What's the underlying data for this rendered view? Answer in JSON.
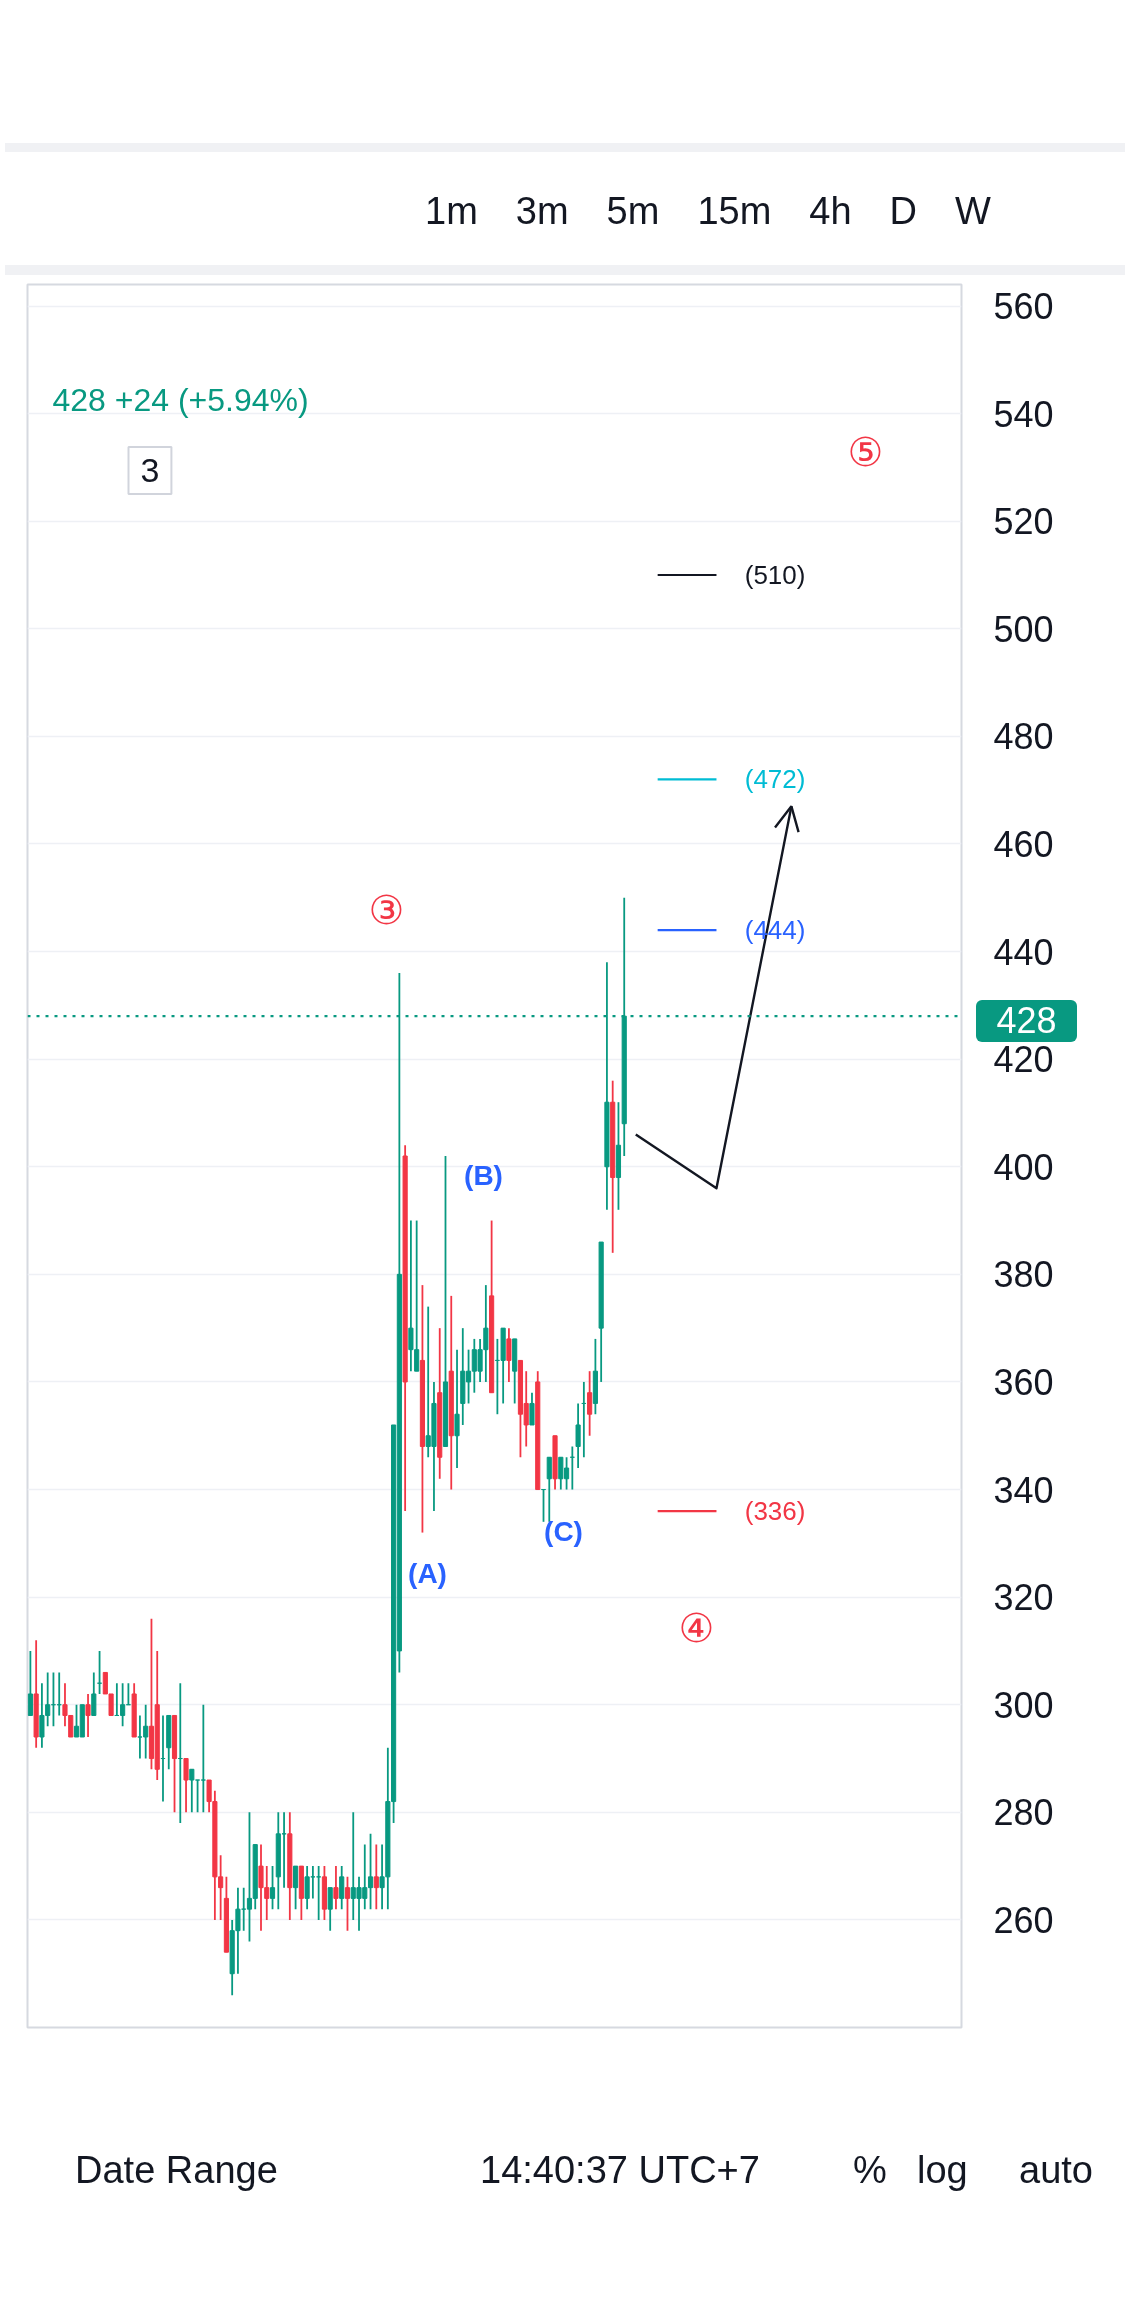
{
  "chart_data": {
    "type": "candlestick",
    "subtitle": "428 +24 (+5.94%)",
    "categories": [
      null,
      null,
      null,
      null,
      null,
      null,
      null,
      null,
      null,
      null,
      null,
      null,
      null,
      null,
      null,
      null,
      null,
      null,
      null,
      null,
      null,
      null,
      null,
      null,
      null,
      null,
      null,
      null,
      null,
      null,
      null,
      null,
      null,
      null,
      null,
      null,
      null,
      null,
      null,
      null,
      null,
      null,
      null,
      null,
      null,
      null,
      null,
      null,
      null,
      null,
      null,
      null,
      null,
      null,
      null,
      null,
      null,
      null,
      null,
      null,
      null,
      null,
      null,
      null,
      null,
      null,
      null,
      null,
      null,
      null,
      null,
      null,
      null,
      null,
      null,
      null,
      null,
      null,
      null,
      null,
      null,
      null,
      null,
      null,
      null,
      null,
      null,
      null,
      null,
      null,
      null,
      null,
      null,
      null,
      null,
      null,
      null,
      null,
      null,
      null,
      null,
      null,
      null,
      null,
      null,
      null,
      null,
      null,
      null,
      null,
      null,
      null,
      null,
      null,
      null,
      null,
      null,
      null,
      null,
      null,
      null,
      null,
      null,
      null,
      null,
      null,
      null,
      null,
      null,
      null,
      null,
      null,
      null,
      null,
      null,
      null,
      null,
      null,
      null,
      null,
      null,
      null,
      null,
      null,
      null,
      null,
      null,
      null,
      null,
      null,
      null,
      null,
      null,
      null,
      null,
      null,
      null,
      null,
      null,
      null,
      null,
      null
    ],
    "ohlc": [
      [
        298,
        310,
        298,
        302
      ],
      [
        302,
        312,
        292,
        294
      ],
      [
        294,
        304,
        292,
        298
      ],
      [
        298,
        306,
        296,
        300
      ],
      [
        300,
        306,
        296,
        300
      ],
      [
        300,
        306,
        298,
        300
      ],
      [
        300,
        304,
        296,
        298
      ],
      [
        298,
        298,
        294,
        294
      ],
      [
        294,
        300,
        294,
        296
      ],
      [
        294,
        300,
        294,
        300
      ],
      [
        300,
        302,
        294,
        298
      ],
      [
        298,
        306,
        298,
        302
      ],
      [
        304,
        310,
        302,
        304
      ],
      [
        306,
        306,
        302,
        302
      ],
      [
        302,
        302,
        298,
        298
      ],
      [
        298,
        304,
        298,
        298
      ],
      [
        298,
        304,
        296,
        300
      ],
      [
        300,
        304,
        300,
        300
      ],
      [
        302,
        304,
        294,
        294
      ],
      [
        294,
        298,
        290,
        294
      ],
      [
        294,
        300,
        290,
        296
      ],
      [
        296,
        316,
        288,
        290
      ],
      [
        300,
        310,
        286,
        288
      ],
      [
        290,
        298,
        282,
        290
      ],
      [
        292,
        298,
        288,
        298
      ],
      [
        298,
        298,
        280,
        290
      ],
      [
        290,
        304,
        278,
        290
      ],
      [
        290,
        290,
        280,
        286
      ],
      [
        286,
        288,
        280,
        288
      ],
      [
        286,
        286,
        280,
        286
      ],
      [
        286,
        300,
        280,
        286
      ],
      [
        286,
        286,
        280,
        282
      ],
      [
        282,
        284,
        260,
        268
      ],
      [
        268,
        272,
        260,
        266
      ],
      [
        264,
        268,
        254,
        254
      ],
      [
        250,
        260,
        246,
        258
      ],
      [
        258,
        266,
        250,
        262
      ],
      [
        262,
        266,
        258,
        262
      ],
      [
        262,
        280,
        256,
        264
      ],
      [
        264,
        274,
        262,
        274
      ],
      [
        270,
        274,
        258,
        266
      ],
      [
        266,
        270,
        260,
        264
      ],
      [
        264,
        270,
        262,
        266
      ],
      [
        268,
        280,
        262,
        276
      ],
      [
        276,
        280,
        266,
        276
      ],
      [
        276,
        280,
        260,
        266
      ],
      [
        266,
        270,
        262,
        270
      ],
      [
        270,
        270,
        260,
        264
      ],
      [
        264,
        270,
        262,
        268
      ],
      [
        268,
        270,
        264,
        268
      ],
      [
        268,
        270,
        260,
        268
      ],
      [
        268,
        270,
        260,
        262
      ],
      [
        262,
        266,
        258,
        266
      ],
      [
        266,
        270,
        262,
        264
      ],
      [
        264,
        270,
        262,
        268
      ],
      [
        266,
        268,
        258,
        264
      ],
      [
        264,
        280,
        260,
        266
      ],
      [
        264,
        268,
        258,
        266
      ],
      [
        264,
        274,
        262,
        266
      ],
      [
        266,
        276,
        262,
        268
      ],
      [
        268,
        274,
        262,
        266
      ],
      [
        266,
        274,
        262,
        268
      ],
      [
        268,
        292,
        262,
        282
      ],
      [
        282,
        352,
        278,
        352
      ],
      [
        310,
        436,
        306,
        380
      ],
      [
        402,
        404,
        336,
        360
      ],
      [
        366,
        390,
        362,
        370
      ],
      [
        362,
        390,
        362,
        366
      ],
      [
        364,
        378,
        332,
        348
      ],
      [
        348,
        374,
        346,
        350
      ],
      [
        348,
        360,
        336,
        356
      ],
      [
        358,
        370,
        342,
        346
      ],
      [
        348,
        402,
        348,
        360
      ],
      [
        362,
        376,
        340,
        350
      ],
      [
        350,
        366,
        344,
        354
      ],
      [
        356,
        370,
        352,
        362
      ],
      [
        360,
        366,
        356,
        362
      ],
      [
        362,
        368,
        358,
        366
      ],
      [
        362,
        368,
        360,
        366
      ],
      [
        366,
        378,
        360,
        370
      ],
      [
        376,
        390,
        358,
        358
      ],
      [
        364,
        368,
        354,
        364
      ],
      [
        364,
        370,
        356,
        370
      ],
      [
        368,
        370,
        360,
        364
      ],
      [
        362,
        368,
        356,
        368
      ],
      [
        364,
        364,
        346,
        354
      ],
      [
        356,
        362,
        348,
        352
      ],
      [
        352,
        358,
        352,
        356
      ],
      [
        360,
        362,
        340,
        340
      ],
      [
        340,
        340,
        334,
        340
      ],
      [
        342,
        346,
        334,
        346
      ],
      [
        350,
        350,
        340,
        342
      ],
      [
        342,
        346,
        340,
        346
      ],
      [
        342,
        346,
        340,
        344
      ],
      [
        346,
        348,
        340,
        346
      ],
      [
        348,
        356,
        344,
        352
      ],
      [
        356,
        360,
        346,
        356
      ],
      [
        358,
        362,
        350,
        354
      ],
      [
        356,
        368,
        354,
        362
      ],
      [
        370,
        386,
        360,
        386
      ],
      [
        400,
        438,
        392,
        412
      ],
      [
        412,
        416,
        384,
        398
      ],
      [
        398,
        412,
        392,
        404
      ],
      [
        408,
        450,
        402,
        428
      ],
      null,
      null,
      null,
      null,
      null,
      null,
      null,
      null,
      null,
      null,
      null,
      null,
      null,
      null,
      null,
      null,
      null,
      null,
      null,
      null,
      null,
      null,
      null,
      null,
      null,
      null,
      null,
      null,
      null,
      null,
      null,
      null,
      null,
      null,
      null,
      null,
      null,
      null,
      null,
      null,
      null,
      null,
      null,
      null,
      null,
      null,
      null,
      null,
      null,
      null,
      null,
      null,
      null,
      null,
      null,
      null,
      null,
      null
    ],
    "colors": [
      "#089981",
      "#f23645",
      "#089981",
      "#089981",
      "#089981",
      "#089981",
      "#f23645",
      "#f23645",
      "#089981",
      "#089981",
      "#f23645",
      "#089981",
      "#089981",
      "#f23645",
      "#f23645",
      "#089981",
      "#089981",
      "#089981",
      "#f23645",
      "#089981",
      "#089981",
      "#f23645",
      "#f23645",
      "#089981",
      "#089981",
      "#f23645",
      "#089981",
      "#f23645",
      "#089981",
      "#089981",
      "#089981",
      "#f23645",
      "#f23645",
      "#f23645",
      "#f23645",
      "#089981",
      "#089981",
      "#089981",
      "#089981",
      "#089981",
      "#f23645",
      "#f23645",
      "#089981",
      "#089981",
      "#089981",
      "#f23645",
      "#089981",
      "#f23645",
      "#089981",
      "#089981",
      "#089981",
      "#f23645",
      "#089981",
      "#f23645",
      "#089981",
      "#f23645",
      "#089981",
      "#089981",
      "#089981",
      "#089981",
      "#f23645",
      "#089981",
      "#089981",
      "#089981",
      "#089981",
      "#f23645",
      "#089981",
      "#089981",
      "#f23645",
      "#089981",
      "#089981",
      "#f23645",
      "#089981",
      "#f23645",
      "#089981",
      "#089981",
      "#089981",
      "#089981",
      "#089981",
      "#089981",
      "#f23645",
      "#089981",
      "#089981",
      "#f23645",
      "#089981",
      "#f23645",
      "#f23645",
      "#089981",
      "#f23645",
      "#089981",
      "#089981",
      "#f23645",
      "#089981",
      "#089981",
      "#089981",
      "#089981",
      "#089981",
      "#f23645",
      "#089981",
      "#089981",
      "#089981",
      "#f23645",
      "#089981",
      "#089981",
      null,
      null,
      null,
      null,
      null,
      null,
      null,
      null,
      null,
      null,
      null,
      null,
      null,
      null,
      null,
      null,
      null,
      null,
      null,
      null,
      null,
      null,
      null,
      null,
      null,
      null,
      null,
      null,
      null,
      null,
      null,
      null,
      null,
      null,
      null,
      null,
      null,
      null,
      null,
      null,
      null,
      null,
      null,
      null,
      null,
      null,
      null,
      null,
      null,
      null,
      null,
      null,
      null,
      null,
      null,
      null,
      null,
      null
    ],
    "series": [
      {
        "type": "line",
        "color": "#131722",
        "values": [
          null,
          null,
          null,
          null,
          null,
          null,
          null,
          null,
          null,
          null,
          null,
          null,
          null,
          null,
          null,
          null,
          null,
          null,
          null,
          null,
          null,
          null,
          null,
          null,
          null,
          null,
          null,
          null,
          null,
          null,
          null,
          null,
          null,
          null,
          null,
          null,
          null,
          null,
          null,
          null,
          null,
          null,
          null,
          null,
          null,
          null,
          null,
          null,
          null,
          null,
          null,
          null,
          null,
          null,
          null,
          null,
          null,
          null,
          null,
          null,
          null,
          null,
          null,
          null,
          null,
          null,
          null,
          null,
          null,
          null,
          null,
          null,
          null,
          null,
          null,
          null,
          null,
          null,
          null,
          null,
          null,
          null,
          null,
          null,
          null,
          null,
          null,
          null,
          null,
          null,
          null,
          null,
          null,
          null,
          null,
          null,
          null,
          null,
          null,
          null,
          null,
          null,
          null,
          null,
          null,
          406,
          null,
          null,
          null,
          null,
          null,
          null,
          null,
          null,
          null,
          null,
          null,
          null,
          null,
          396,
          null,
          null,
          null,
          null,
          null,
          null,
          null,
          null,
          null,
          null,
          null,
          null,
          467,
          null,
          null,
          null,
          null,
          null,
          null,
          null,
          null,
          null,
          null,
          null,
          null,
          null,
          null,
          null,
          null,
          null,
          null,
          null,
          null,
          null,
          null,
          null,
          null,
          null,
          null,
          null,
          null,
          null
        ]
      }
    ],
    "ylim": [
      240,
      564
    ],
    "yticks": [
      260,
      280,
      300,
      320,
      340,
      360,
      380,
      400,
      420,
      440,
      460,
      480,
      500,
      520,
      540,
      560
    ],
    "grid": "y",
    "tick_labels": "y",
    "ref_lines": [
      {
        "axis": "y",
        "value": 428,
        "label": "428",
        "color": "#089981",
        "line_style": "dotted"
      },
      {
        "axis": "y",
        "value": 510,
        "label": "(510)",
        "color": "#131722"
      },
      {
        "axis": "y",
        "value": 472,
        "label": "(472)",
        "color": "#00bcd4"
      },
      {
        "axis": "y",
        "value": 444,
        "label": "(444)",
        "color": "#2962ff"
      },
      {
        "axis": "y",
        "value": 336,
        "label": "(336)",
        "color": "#f23645"
      }
    ],
    "annotations": [
      "1m",
      "3m",
      "5m",
      "15m",
      "4h",
      "D",
      "W",
      "3",
      "⑤",
      "③",
      "(B)",
      "(C)",
      "(A)",
      "④",
      "Date Range",
      "14:40:37 UTC+7",
      "%",
      "log",
      "auto"
    ]
  }
}
